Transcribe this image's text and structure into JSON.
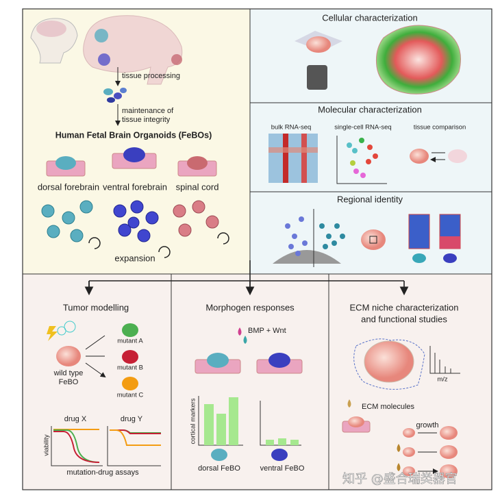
{
  "top_left": {
    "steps": [
      "tissue processing",
      "maintenance of",
      "tissue integrity"
    ],
    "title": "Human Fetal Brain Organoids (FeBOs)",
    "regions": [
      "dorsal forebrain",
      "ventral forebrain",
      "spinal cord"
    ],
    "expansion": "expansion"
  },
  "cellular": {
    "title": "Cellular characterization"
  },
  "molecular": {
    "title": "Molecular characterization",
    "labels": [
      "bulk RNA-seq",
      "single-cell RNA-seq",
      "tissue comparison"
    ]
  },
  "regional": {
    "title": "Regional identity"
  },
  "tumor": {
    "title": "Tumor modelling",
    "wild_type": [
      "wild type",
      "FeBO"
    ],
    "mutants": [
      "mutant A",
      "mutant B",
      "mutant C"
    ],
    "drugs": [
      "drug X",
      "drug Y"
    ],
    "y_label": "viability",
    "caption": "mutation-drug assays"
  },
  "morphogen": {
    "title": "Morphogen responses",
    "treatment": "BMP + Wnt",
    "y_label": "cortical markers",
    "labels": [
      "dorsal FeBO",
      "ventral FeBO"
    ]
  },
  "ecm": {
    "title": [
      "ECM niche characterization",
      "and functional studies"
    ],
    "ms_label": "m/z",
    "molecules": "ECM molecules",
    "growth": "growth"
  },
  "watermark": "知乎 @盛合瑞类器官"
}
